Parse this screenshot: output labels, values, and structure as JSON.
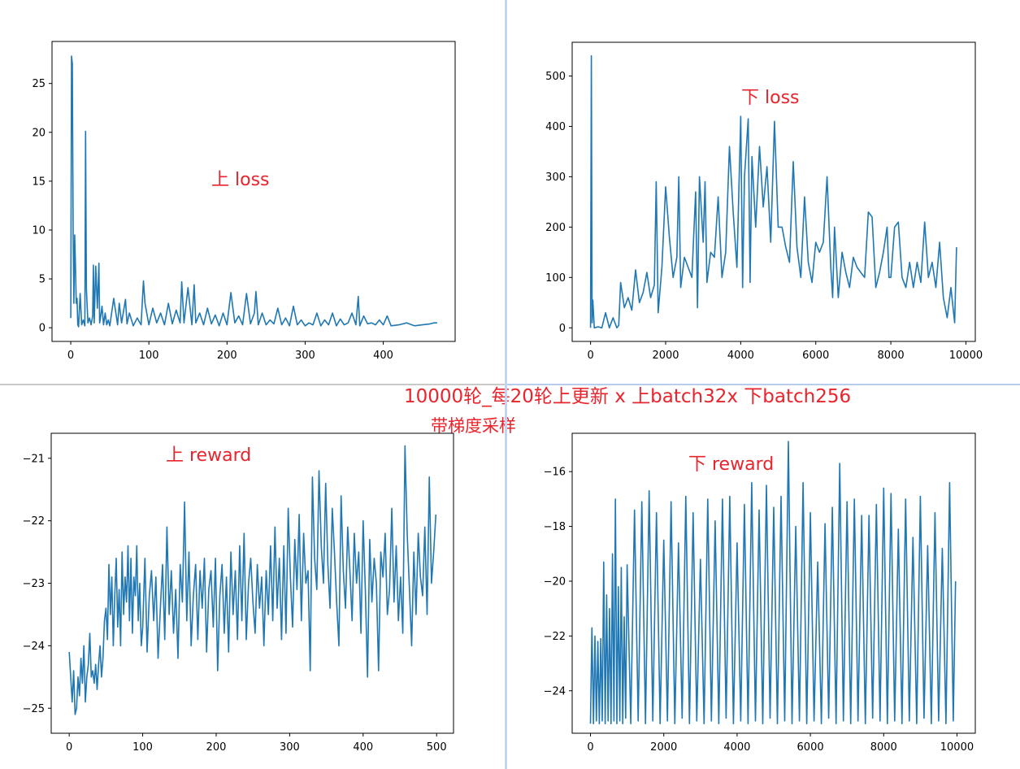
{
  "caption": {
    "main": "10000轮_每20轮上更新 x 上batch32x 下batch256",
    "sub": "带梯度采样"
  },
  "colors": {
    "line": "#1f77b4",
    "annotation": "#e8242c"
  },
  "chart_data": [
    {
      "id": "upper-loss",
      "type": "line",
      "annotation": "上 loss",
      "xlim": [
        -24,
        492
      ],
      "ylim": [
        -1.4,
        29.3
      ],
      "xticks": [
        0,
        100,
        200,
        300,
        400
      ],
      "yticks": [
        0,
        5,
        10,
        15,
        20,
        25
      ],
      "x": [
        0,
        1,
        2,
        3,
        4,
        5,
        6,
        7,
        8,
        9,
        10,
        12,
        14,
        16,
        18,
        19,
        20,
        22,
        24,
        26,
        28,
        29,
        30,
        32,
        34,
        36,
        37,
        38,
        40,
        42,
        44,
        46,
        48,
        50,
        55,
        60,
        62,
        65,
        70,
        72,
        75,
        80,
        85,
        90,
        93,
        95,
        100,
        105,
        110,
        115,
        120,
        125,
        130,
        135,
        140,
        142,
        145,
        150,
        155,
        158,
        160,
        165,
        170,
        175,
        180,
        185,
        190,
        195,
        200,
        205,
        210,
        215,
        220,
        225,
        230,
        235,
        237,
        240,
        245,
        250,
        255,
        260,
        265,
        270,
        275,
        280,
        285,
        290,
        295,
        300,
        305,
        310,
        315,
        320,
        325,
        330,
        335,
        340,
        345,
        350,
        355,
        360,
        365,
        368,
        370,
        375,
        380,
        385,
        390,
        395,
        400,
        405,
        410,
        420,
        430,
        440,
        450,
        460,
        465,
        469
      ],
      "y": [
        1.0,
        27.8,
        27.0,
        9.4,
        2.5,
        9.5,
        6.5,
        2.5,
        3.0,
        0.3,
        0.1,
        3.5,
        0.3,
        0.8,
        0.2,
        20.1,
        4.0,
        0.5,
        1.0,
        0.3,
        1.2,
        6.4,
        0.5,
        6.3,
        2.0,
        6.6,
        0.5,
        1.0,
        2.2,
        0.3,
        1.5,
        0.3,
        0.8,
        0.2,
        3.0,
        0.3,
        2.5,
        0.5,
        2.9,
        0.4,
        1.5,
        0.2,
        1.0,
        0.3,
        4.8,
        2.5,
        0.3,
        2.0,
        0.5,
        1.5,
        0.3,
        2.5,
        0.4,
        1.8,
        0.5,
        4.7,
        0.5,
        4.1,
        0.3,
        4.4,
        0.5,
        1.5,
        0.3,
        2.0,
        0.4,
        1.3,
        0.2,
        1.5,
        0.3,
        3.6,
        0.5,
        1.2,
        0.3,
        3.5,
        0.4,
        1.5,
        3.7,
        0.3,
        1.5,
        0.3,
        0.8,
        0.4,
        2.0,
        0.3,
        1.0,
        0.2,
        2.2,
        0.3,
        0.8,
        0.2,
        0.5,
        0.3,
        1.5,
        0.2,
        0.8,
        0.3,
        1.5,
        0.2,
        0.9,
        0.3,
        0.5,
        1.5,
        0.3,
        3.2,
        0.2,
        1.2,
        0.4,
        0.5,
        0.3,
        0.8,
        0.3,
        1.2,
        0.2,
        0.3,
        0.5,
        0.2,
        0.3,
        0.4,
        0.5,
        0.5
      ]
    },
    {
      "id": "lower-loss",
      "type": "line",
      "annotation": "下 loss",
      "xlim": [
        -490,
        10250
      ],
      "ylim": [
        -27,
        567
      ],
      "xticks": [
        0,
        2000,
        4000,
        6000,
        8000,
        10000
      ],
      "yticks": [
        0,
        100,
        200,
        300,
        400,
        500
      ],
      "x": [
        0,
        20,
        40,
        60,
        100,
        200,
        300,
        400,
        500,
        600,
        700,
        750,
        800,
        900,
        1000,
        1100,
        1200,
        1300,
        1400,
        1500,
        1600,
        1700,
        1750,
        1800,
        1900,
        2000,
        2100,
        2200,
        2300,
        2350,
        2400,
        2500,
        2600,
        2700,
        2800,
        2850,
        2900,
        3000,
        3050,
        3100,
        3200,
        3300,
        3400,
        3500,
        3600,
        3700,
        3800,
        3900,
        4000,
        4050,
        4100,
        4200,
        4250,
        4300,
        4400,
        4500,
        4600,
        4700,
        4800,
        4900,
        5000,
        5100,
        5200,
        5300,
        5400,
        5500,
        5600,
        5700,
        5800,
        5900,
        6000,
        6100,
        6200,
        6300,
        6400,
        6450,
        6500,
        6600,
        6700,
        6800,
        6900,
        7000,
        7100,
        7200,
        7300,
        7400,
        7500,
        7600,
        7700,
        7800,
        7900,
        7950,
        8000,
        8100,
        8200,
        8300,
        8400,
        8500,
        8600,
        8700,
        8800,
        8900,
        9000,
        9100,
        9200,
        9300,
        9400,
        9500,
        9600,
        9700,
        9750
      ],
      "y": [
        0,
        540,
        10,
        55,
        0,
        2,
        0,
        30,
        0,
        20,
        0,
        5,
        90,
        40,
        60,
        35,
        115,
        50,
        70,
        110,
        60,
        85,
        290,
        30,
        120,
        280,
        180,
        100,
        140,
        300,
        80,
        140,
        120,
        100,
        270,
        40,
        300,
        170,
        290,
        90,
        150,
        140,
        260,
        100,
        150,
        360,
        230,
        120,
        420,
        80,
        300,
        415,
        90,
        340,
        200,
        360,
        240,
        320,
        170,
        410,
        200,
        200,
        160,
        130,
        330,
        160,
        100,
        260,
        130,
        90,
        170,
        150,
        170,
        300,
        120,
        60,
        200,
        60,
        150,
        110,
        80,
        140,
        120,
        110,
        100,
        230,
        220,
        80,
        110,
        150,
        200,
        100,
        100,
        200,
        210,
        100,
        80,
        130,
        80,
        130,
        90,
        210,
        100,
        130,
        80,
        170,
        60,
        20,
        80,
        10,
        160
      ]
    },
    {
      "id": "upper-reward",
      "type": "line",
      "annotation": "上 reward",
      "xlim": [
        -24.5,
        523
      ],
      "ylim": [
        -25.4,
        -20.6
      ],
      "xticks": [
        0,
        100,
        200,
        300,
        400,
        500
      ],
      "yticks": [
        -25,
        -24,
        -23,
        -22,
        -21
      ],
      "x": [
        0,
        2,
        4,
        6,
        8,
        10,
        12,
        14,
        16,
        18,
        20,
        22,
        24,
        26,
        28,
        30,
        32,
        34,
        36,
        38,
        40,
        42,
        44,
        46,
        48,
        50,
        52,
        54,
        56,
        58,
        60,
        62,
        64,
        66,
        68,
        70,
        72,
        74,
        76,
        78,
        80,
        82,
        84,
        86,
        88,
        90,
        92,
        94,
        96,
        98,
        100,
        103,
        106,
        109,
        112,
        115,
        118,
        121,
        124,
        127,
        130,
        133,
        136,
        139,
        142,
        145,
        148,
        151,
        154,
        157,
        160,
        163,
        166,
        169,
        172,
        175,
        178,
        181,
        184,
        187,
        190,
        193,
        196,
        199,
        202,
        205,
        208,
        211,
        214,
        217,
        220,
        223,
        226,
        229,
        232,
        235,
        238,
        241,
        244,
        247,
        250,
        253,
        256,
        259,
        262,
        265,
        268,
        271,
        274,
        277,
        280,
        283,
        286,
        289,
        292,
        295,
        298,
        301,
        304,
        307,
        310,
        313,
        316,
        319,
        322,
        325,
        328,
        331,
        334,
        337,
        340,
        343,
        346,
        349,
        352,
        355,
        358,
        361,
        364,
        367,
        370,
        373,
        376,
        379,
        382,
        385,
        388,
        391,
        394,
        397,
        400,
        403,
        406,
        409,
        412,
        415,
        418,
        421,
        424,
        427,
        430,
        433,
        436,
        439,
        442,
        445,
        448,
        451,
        454,
        457,
        460,
        463,
        466,
        469,
        472,
        475,
        478,
        481,
        484,
        487,
        490,
        493,
        496,
        499
      ],
      "y": [
        -24.1,
        -24.5,
        -24.9,
        -24.4,
        -25.1,
        -25.0,
        -24.5,
        -24.8,
        -24.2,
        -24.6,
        -24.0,
        -24.9,
        -24.5,
        -24.3,
        -23.8,
        -24.5,
        -24.4,
        -24.6,
        -24.3,
        -24.7,
        -24.3,
        -24.0,
        -24.5,
        -24.2,
        -23.6,
        -23.4,
        -23.9,
        -22.7,
        -23.5,
        -22.9,
        -24.0,
        -23.2,
        -22.6,
        -23.7,
        -23.1,
        -24.0,
        -22.5,
        -23.5,
        -22.9,
        -23.3,
        -22.4,
        -23.6,
        -22.6,
        -23.8,
        -22.9,
        -23.2,
        -22.4,
        -23.6,
        -23.0,
        -24.0,
        -23.7,
        -22.6,
        -24.1,
        -23.2,
        -22.8,
        -23.6,
        -22.9,
        -24.2,
        -23.4,
        -22.7,
        -23.9,
        -22.1,
        -23.5,
        -22.8,
        -23.8,
        -23.1,
        -24.2,
        -22.7,
        -23.3,
        -21.7,
        -23.6,
        -22.5,
        -24.0,
        -23.2,
        -22.7,
        -23.9,
        -22.8,
        -23.4,
        -22.6,
        -24.1,
        -23.1,
        -22.8,
        -23.7,
        -22.6,
        -24.4,
        -23.2,
        -22.7,
        -23.8,
        -22.9,
        -24.1,
        -22.5,
        -23.5,
        -22.8,
        -23.9,
        -22.4,
        -23.6,
        -22.2,
        -23.9,
        -23.0,
        -22.6,
        -23.3,
        -23.8,
        -22.7,
        -23.4,
        -22.9,
        -24.0,
        -22.8,
        -23.5,
        -22.4,
        -23.6,
        -22.1,
        -23.4,
        -22.6,
        -23.9,
        -22.4,
        -23.8,
        -21.8,
        -22.9,
        -23.7,
        -22.3,
        -23.1,
        -21.9,
        -23.6,
        -22.2,
        -23.0,
        -22.8,
        -24.4,
        -21.3,
        -22.6,
        -23.1,
        -21.2,
        -22.4,
        -23.0,
        -21.4,
        -22.7,
        -23.4,
        -21.8,
        -22.5,
        -23.3,
        -24.0,
        -21.6,
        -22.8,
        -23.4,
        -22.1,
        -22.8,
        -23.6,
        -22.2,
        -23.0,
        -22.5,
        -23.8,
        -22.0,
        -23.1,
        -24.5,
        -22.3,
        -23.3,
        -22.6,
        -23.0,
        -24.4,
        -22.5,
        -22.9,
        -22.2,
        -23.5,
        -23.1,
        -21.8,
        -23.3,
        -22.4,
        -23.6,
        -22.9,
        -23.8,
        -20.8,
        -22.2,
        -23.1,
        -24.0,
        -22.5,
        -23.5,
        -22.2,
        -22.9,
        -23.2,
        -22.1,
        -23.5,
        -21.3,
        -23.0,
        -22.5,
        -21.9
      ]
    },
    {
      "id": "lower-reward",
      "type": "line",
      "annotation": "下 reward",
      "xlim": [
        -500,
        10500
      ],
      "ylim": [
        -25.55,
        -14.6
      ],
      "xticks": [
        0,
        2000,
        4000,
        6000,
        8000,
        10000
      ],
      "yticks": [
        -24,
        -22,
        -20,
        -18,
        -16
      ],
      "x": [
        0,
        40,
        80,
        120,
        160,
        200,
        240,
        280,
        320,
        360,
        400,
        440,
        480,
        520,
        560,
        600,
        640,
        680,
        720,
        760,
        800,
        840,
        880,
        920,
        960,
        1000,
        1100,
        1200,
        1300,
        1400,
        1500,
        1600,
        1700,
        1800,
        1900,
        2000,
        2100,
        2200,
        2300,
        2400,
        2500,
        2600,
        2700,
        2800,
        2900,
        3000,
        3100,
        3200,
        3300,
        3400,
        3500,
        3600,
        3700,
        3800,
        3900,
        4000,
        4100,
        4200,
        4300,
        4400,
        4500,
        4600,
        4700,
        4800,
        4900,
        5000,
        5100,
        5200,
        5300,
        5400,
        5500,
        5600,
        5700,
        5800,
        5900,
        6000,
        6100,
        6200,
        6300,
        6400,
        6500,
        6600,
        6700,
        6800,
        6900,
        7000,
        7100,
        7200,
        7300,
        7400,
        7500,
        7600,
        7700,
        7800,
        7900,
        8000,
        8100,
        8200,
        8300,
        8400,
        8500,
        8600,
        8700,
        8800,
        8900,
        9000,
        9100,
        9200,
        9300,
        9400,
        9500,
        9600,
        9700,
        9800,
        9900,
        9960
      ],
      "y": [
        -25.2,
        -21.7,
        -25.2,
        -22.0,
        -25.1,
        -22.2,
        -25.2,
        -22.1,
        -25.1,
        -19.3,
        -25.2,
        -20.5,
        -25.1,
        -21.0,
        -25.2,
        -19.0,
        -25.1,
        -17.0,
        -25.2,
        -20.2,
        -25.1,
        -19.5,
        -25.2,
        -21.3,
        -25.0,
        -19.4,
        -25.2,
        -17.4,
        -25.1,
        -17.1,
        -25.2,
        -16.7,
        -25.1,
        -17.5,
        -25.2,
        -18.5,
        -25.1,
        -17.1,
        -25.2,
        -18.6,
        -25.0,
        -16.9,
        -25.2,
        -17.5,
        -25.1,
        -19.2,
        -25.2,
        -17.0,
        -25.1,
        -17.8,
        -25.2,
        -17.0,
        -25.0,
        -16.9,
        -25.2,
        -18.6,
        -25.1,
        -17.2,
        -25.2,
        -16.4,
        -25.1,
        -17.4,
        -25.2,
        -16.5,
        -25.0,
        -17.3,
        -25.2,
        -16.9,
        -25.1,
        -14.9,
        -25.2,
        -18.0,
        -25.1,
        -16.4,
        -25.2,
        -17.5,
        -25.1,
        -19.3,
        -25.2,
        -17.9,
        -25.0,
        -17.3,
        -25.2,
        -15.7,
        -25.1,
        -17.1,
        -25.2,
        -17.0,
        -25.1,
        -17.6,
        -25.2,
        -17.6,
        -25.0,
        -17.2,
        -25.1,
        -16.6,
        -25.2,
        -16.8,
        -25.1,
        -18.1,
        -25.2,
        -17.0,
        -25.1,
        -18.4,
        -25.2,
        -16.9,
        -25.0,
        -18.7,
        -25.2,
        -17.5,
        -25.1,
        -18.8,
        -25.2,
        -16.4,
        -25.1,
        -20.0
      ]
    }
  ]
}
